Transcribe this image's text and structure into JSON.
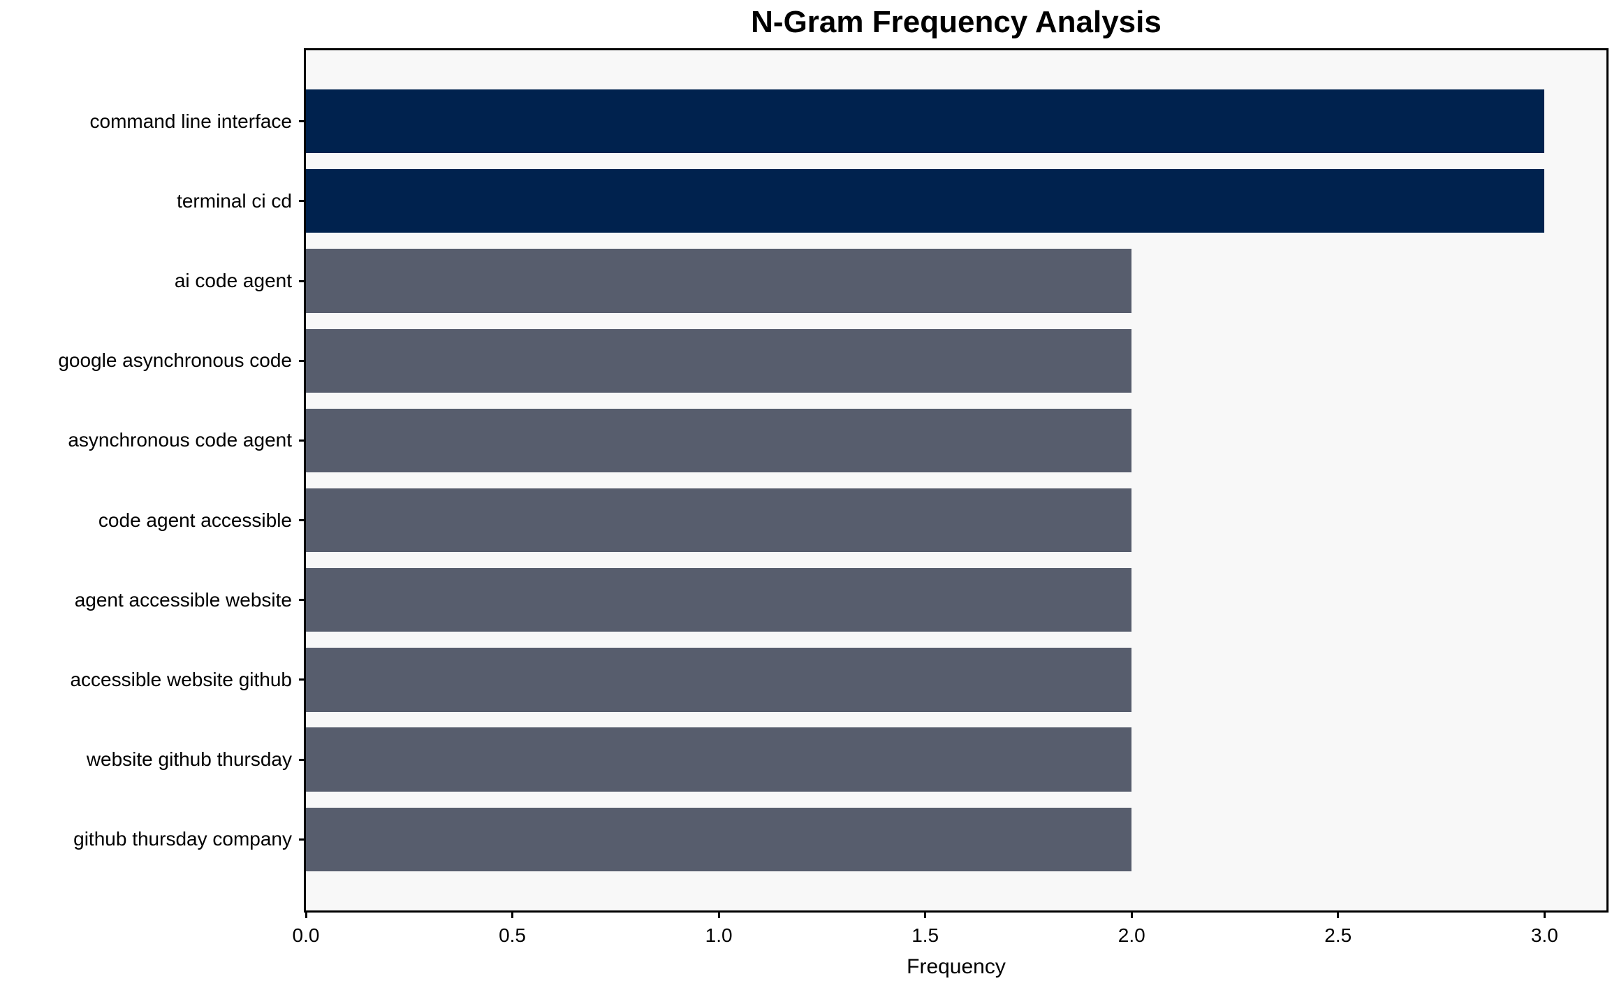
{
  "chart_data": {
    "type": "bar",
    "orientation": "horizontal",
    "title": "N-Gram Frequency Analysis",
    "xlabel": "Frequency",
    "categories": [
      "command line interface",
      "terminal ci cd",
      "ai code agent",
      "google asynchronous code",
      "asynchronous code agent",
      "code agent accessible",
      "agent accessible website",
      "accessible website github",
      "website github thursday",
      "github thursday company"
    ],
    "values": [
      3,
      3,
      2,
      2,
      2,
      2,
      2,
      2,
      2,
      2
    ],
    "bar_colors": [
      "#00224e",
      "#00224e",
      "#575d6d",
      "#575d6d",
      "#575d6d",
      "#575d6d",
      "#575d6d",
      "#575d6d",
      "#575d6d",
      "#575d6d"
    ],
    "xlim": [
      0,
      3.15
    ],
    "xticks": [
      0.0,
      0.5,
      1.0,
      1.5,
      2.0,
      2.5,
      3.0
    ],
    "xtick_labels": [
      "0.0",
      "0.5",
      "1.0",
      "1.5",
      "2.0",
      "2.5",
      "3.0"
    ],
    "grid": false,
    "legend_position": "none",
    "plot_background": "#f8f8f8",
    "figure_background": "#ffffff",
    "text_color": "#000000"
  }
}
